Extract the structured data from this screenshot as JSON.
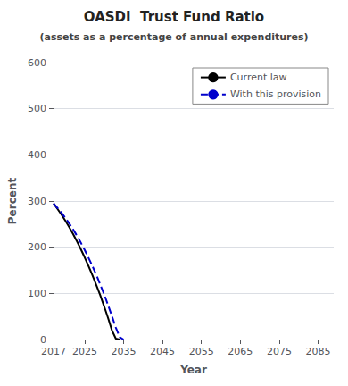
{
  "chart_data": {
    "type": "line",
    "title": "OASDI  Trust Fund Ratio",
    "subtitle": "(assets as a percentage of annual expenditures)",
    "xlabel": "Year",
    "ylabel": "Percent",
    "xlim": [
      2017,
      2089
    ],
    "xticks": [
      2017,
      2025,
      2035,
      2045,
      2055,
      2065,
      2075,
      2085
    ],
    "ylim": [
      0,
      600
    ],
    "yticks": [
      0,
      100,
      200,
      300,
      400,
      500,
      600
    ],
    "grid": true,
    "legend": "upper right",
    "series": [
      {
        "name": "Current law",
        "color": "#000000",
        "line_style": "solid",
        "x": [
          2017,
          2018,
          2019,
          2020,
          2021,
          2022,
          2023,
          2024,
          2025,
          2026,
          2027,
          2028,
          2029,
          2030,
          2031,
          2032,
          2033,
          2034
        ],
        "values": [
          295,
          283,
          271,
          258,
          244,
          229,
          213,
          196,
          178,
          159,
          139,
          118,
          96,
          72,
          47,
          20,
          2,
          0
        ]
      },
      {
        "name": "With this provision",
        "color": "#0000cc",
        "line_style": "dashed",
        "x": [
          2017,
          2018,
          2019,
          2020,
          2021,
          2022,
          2023,
          2024,
          2025,
          2026,
          2027,
          2028,
          2029,
          2030,
          2031,
          2032,
          2033,
          2034,
          2035
        ],
        "values": [
          295,
          285,
          275,
          264,
          252,
          239,
          225,
          210,
          194,
          177,
          159,
          140,
          119,
          98,
          75,
          51,
          26,
          5,
          0
        ]
      }
    ]
  }
}
